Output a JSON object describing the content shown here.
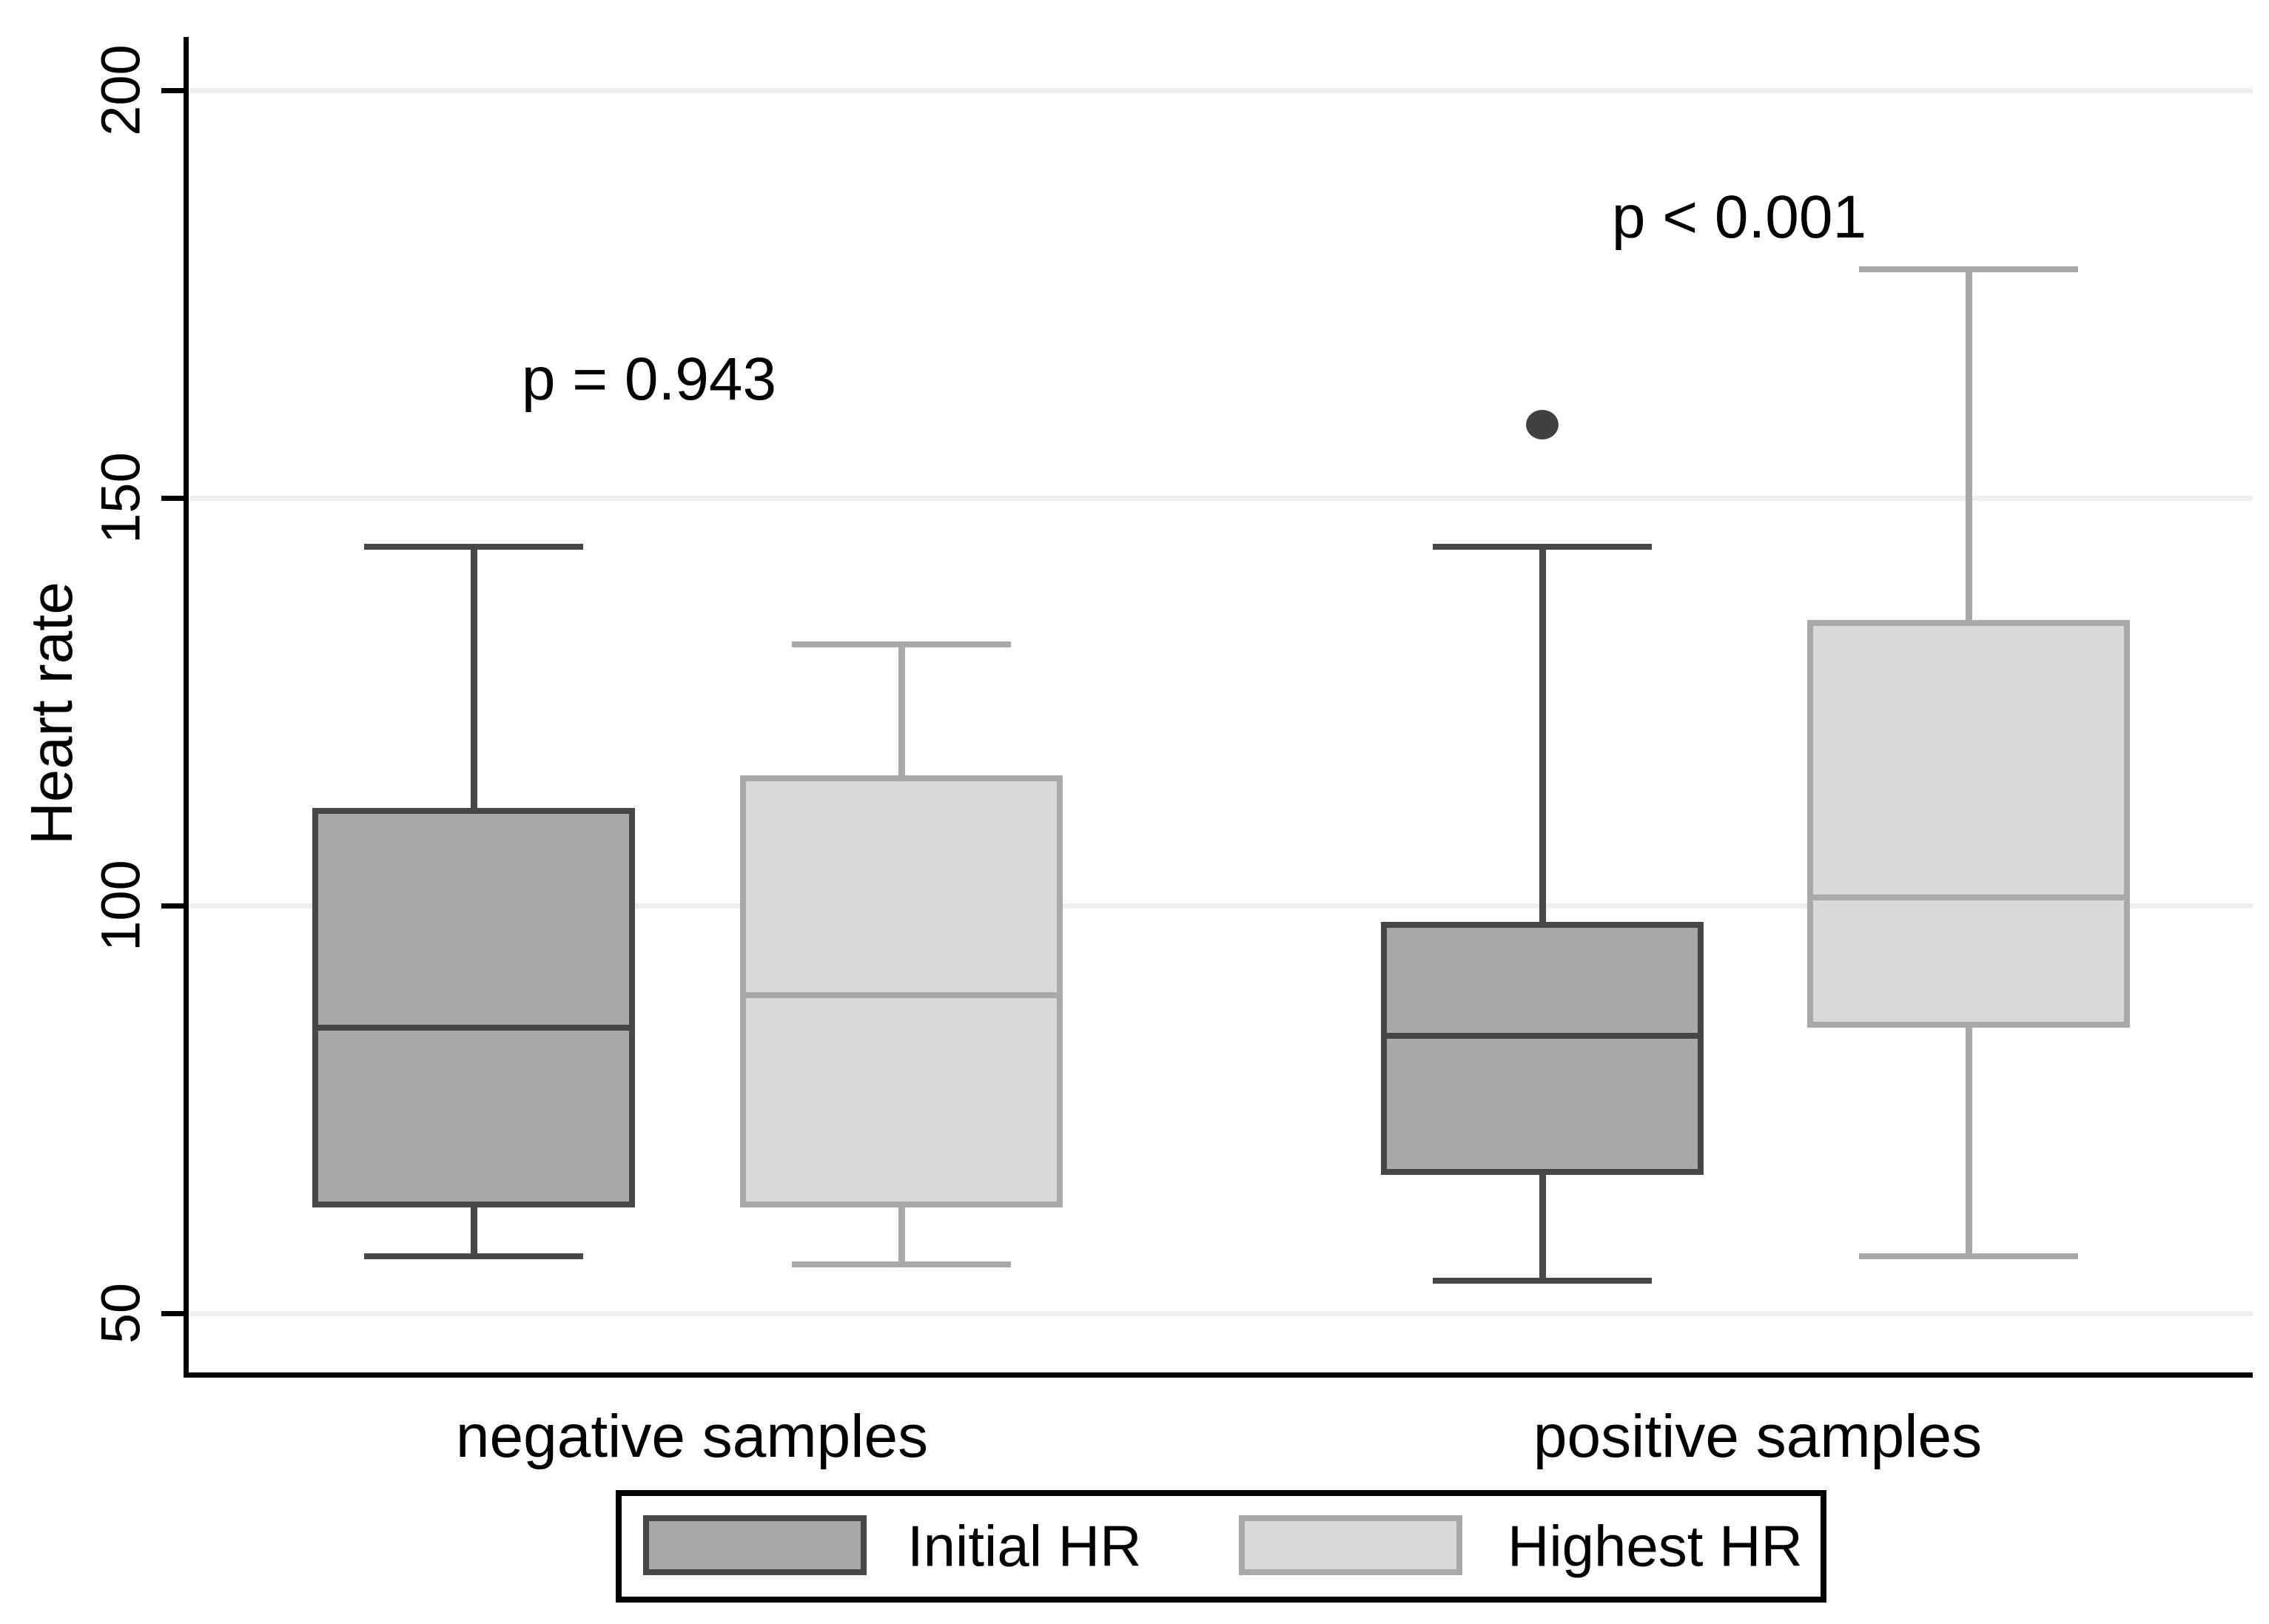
{
  "chart_data": {
    "type": "boxplot",
    "title": "",
    "ylabel": "Heart rate",
    "xlabel": "",
    "yticks": [
      50,
      100,
      150,
      200
    ],
    "ylim": [
      42,
      206
    ],
    "grid": true,
    "grid_color": "#efefef",
    "categories": [
      "negative samples",
      "positive samples"
    ],
    "series": [
      {
        "name": "Initial HR",
        "fill": "#a8a8a8",
        "stroke": "#474747",
        "boxes": [
          {
            "category": "negative samples",
            "whisker_low": 57,
            "q1": 63,
            "median": 85,
            "q3": 112,
            "whisker_high": 144,
            "outliers": []
          },
          {
            "category": "positive samples",
            "whisker_low": 54,
            "q1": 67,
            "median": 84,
            "q3": 98,
            "whisker_high": 144,
            "outliers": [
              159
            ]
          }
        ]
      },
      {
        "name": "Highest HR",
        "fill": "#d9d9d9",
        "stroke": "#a9a9a9",
        "boxes": [
          {
            "category": "negative samples",
            "whisker_low": 56,
            "q1": 63,
            "median": 89,
            "q3": 116,
            "whisker_high": 132,
            "outliers": []
          },
          {
            "category": "positive samples",
            "whisker_low": 57,
            "q1": 85,
            "median": 101,
            "q3": 135,
            "whisker_high": 178,
            "outliers": []
          }
        ]
      }
    ],
    "outlier_color": "#404040",
    "annotations": [
      {
        "text": "p = 0.943",
        "category": "negative samples"
      },
      {
        "text": "p < 0.001",
        "category": "positive samples"
      }
    ],
    "legend": {
      "position": "bottom",
      "entries": [
        "Initial HR",
        "Highest HR"
      ]
    }
  }
}
